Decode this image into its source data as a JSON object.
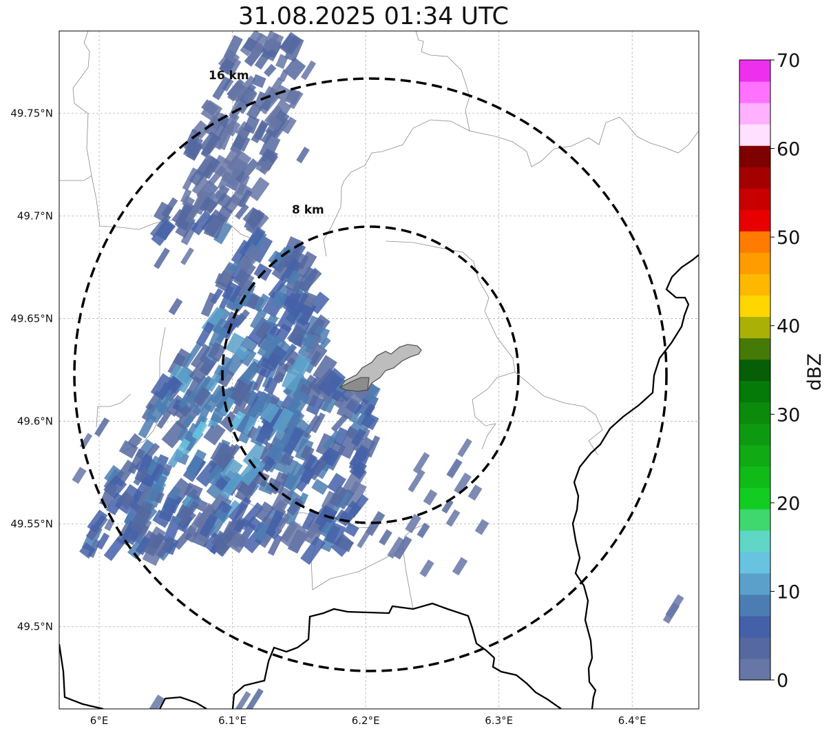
{
  "title": "31.08.2025 01:34 UTC",
  "lon_ticks": [
    {
      "value": 6.0,
      "label": "6°E"
    },
    {
      "value": 6.1,
      "label": "6.1°E"
    },
    {
      "value": 6.2,
      "label": "6.2°E"
    },
    {
      "value": 6.3,
      "label": "6.3°E"
    },
    {
      "value": 6.4,
      "label": "6.4°E"
    }
  ],
  "lat_ticks": [
    {
      "value": 49.75,
      "label": "49.75°N"
    },
    {
      "value": 49.7,
      "label": "49.7°N"
    },
    {
      "value": 49.65,
      "label": "49.65°N"
    },
    {
      "value": 49.6,
      "label": "49.6°N"
    },
    {
      "value": 49.55,
      "label": "49.55°N"
    },
    {
      "value": 49.5,
      "label": "49.5°N"
    }
  ],
  "extent": {
    "lon_min": 5.97,
    "lon_max": 6.45,
    "lat_min": 49.46,
    "lat_max": 49.79
  },
  "radar_center": {
    "lon": 6.205,
    "lat": 49.624
  },
  "range_rings": [
    {
      "radius_km": 8,
      "label": "8 km"
    },
    {
      "radius_km": 16,
      "label": "16 km"
    }
  ],
  "colorbar": {
    "label": "dBZ",
    "min": 0,
    "max": 70,
    "ticks": [
      "0",
      "10",
      "20",
      "30",
      "40",
      "50",
      "60",
      "70"
    ],
    "colors": [
      "#6676a6",
      "#5569a0",
      "#4460a8",
      "#4c7db2",
      "#5aa0ca",
      "#68c3e0",
      "#60d6c6",
      "#3ed86e",
      "#12cc22",
      "#10bb18",
      "#10aa14",
      "#0e9a10",
      "#0c8a0c",
      "#067a08",
      "#065e06",
      "#467a06",
      "#aab006",
      "#ffd600",
      "#ffb800",
      "#ff9c00",
      "#ff7c00",
      "#e80000",
      "#c80000",
      "#a40000",
      "#7e0000",
      "#ffe0ff",
      "#ffb0ff",
      "#ff72ff",
      "#ee30ee"
    ]
  }
}
